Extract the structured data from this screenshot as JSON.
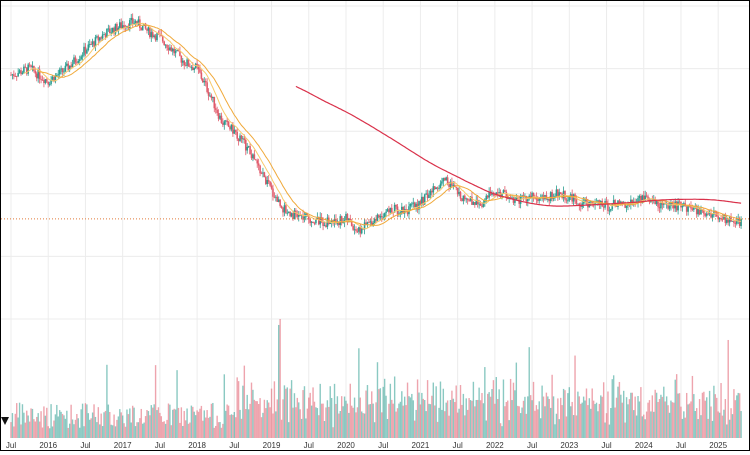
{
  "chart_data": {
    "type": "candlestick",
    "title": "",
    "xlabel": "",
    "ylabel": "",
    "grid": true,
    "legend": "none",
    "x_tick_labels": [
      "Jul",
      "2016",
      "Jul",
      "2017",
      "Jul",
      "2018",
      "Jul",
      "2019",
      "Jul",
      "2020",
      "Jul",
      "2021",
      "Jul",
      "2022",
      "Jul",
      "2023",
      "Jul",
      "2024",
      "Jul",
      "2025"
    ],
    "price_range": [
      0,
      100
    ],
    "last_price": 32,
    "price_trend": [
      [
        "2015-07",
        78
      ],
      [
        "2015-10",
        80
      ],
      [
        "2016-01",
        76
      ],
      [
        "2016-04",
        80
      ],
      [
        "2016-07",
        86
      ],
      [
        "2016-10",
        91
      ],
      [
        "2017-01",
        94
      ],
      [
        "2017-03",
        95
      ],
      [
        "2017-05",
        92
      ],
      [
        "2017-07",
        90
      ],
      [
        "2017-09",
        86
      ],
      [
        "2017-11",
        82
      ],
      [
        "2018-01",
        80
      ],
      [
        "2018-03",
        72
      ],
      [
        "2018-05",
        63
      ],
      [
        "2018-07",
        60
      ],
      [
        "2018-09",
        55
      ],
      [
        "2018-11",
        48
      ],
      [
        "2019-01",
        41
      ],
      [
        "2019-03",
        35
      ],
      [
        "2019-05",
        33
      ],
      [
        "2019-07",
        32
      ],
      [
        "2019-09",
        31
      ],
      [
        "2019-11",
        31
      ],
      [
        "2020-01",
        32
      ],
      [
        "2020-03",
        28
      ],
      [
        "2020-05",
        31
      ],
      [
        "2020-07",
        34
      ],
      [
        "2020-09",
        35
      ],
      [
        "2020-11",
        35
      ],
      [
        "2021-01",
        37
      ],
      [
        "2021-03",
        41
      ],
      [
        "2021-05",
        45
      ],
      [
        "2021-07",
        40
      ],
      [
        "2021-09",
        38
      ],
      [
        "2021-11",
        37
      ],
      [
        "2022-01",
        41
      ],
      [
        "2022-03",
        39
      ],
      [
        "2022-05",
        38
      ],
      [
        "2022-07",
        39
      ],
      [
        "2022-09",
        38
      ],
      [
        "2022-11",
        40
      ],
      [
        "2023-01",
        39
      ],
      [
        "2023-03",
        37
      ],
      [
        "2023-05",
        37
      ],
      [
        "2023-07",
        36
      ],
      [
        "2023-09",
        37
      ],
      [
        "2023-11",
        37
      ],
      [
        "2024-01",
        39
      ],
      [
        "2024-03",
        37
      ],
      [
        "2024-05",
        36
      ],
      [
        "2024-07",
        36
      ],
      [
        "2024-09",
        35
      ],
      [
        "2024-11",
        34
      ],
      [
        "2025-01",
        33
      ],
      [
        "2025-04",
        31
      ]
    ],
    "series": [
      {
        "name": "",
        "color": "#f0a93a",
        "kind": "moving-average-short"
      },
      {
        "name": "",
        "color": "#f7c96b",
        "kind": "moving-average-medium"
      },
      {
        "name": "",
        "color": "#d9314a",
        "kind": "moving-average-long"
      }
    ],
    "colors": {
      "up": "#2a9d8f",
      "down": "#e05a6a",
      "ma_short": "#f0a93a",
      "ma_medium": "#f7c96b",
      "ma_long": "#d9314a",
      "last_price_line": "#e07a3a"
    }
  }
}
